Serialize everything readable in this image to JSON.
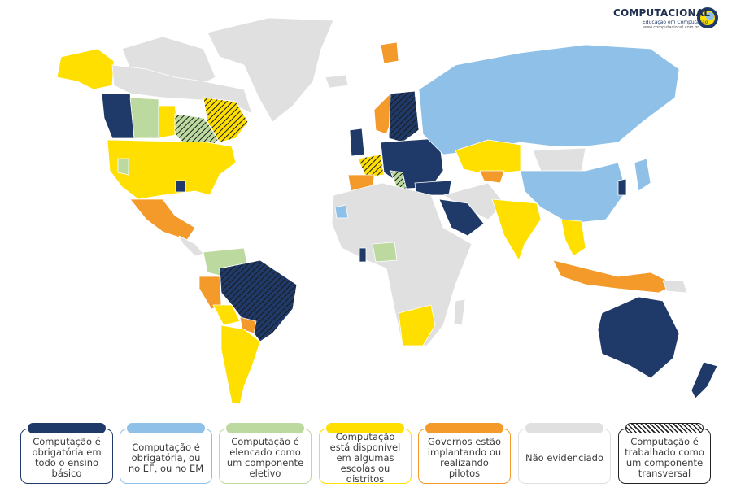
{
  "logo": {
    "title": "COMPUTACIONAL",
    "subtitle": "Educação em Computação",
    "url": "www.computacional.com.br"
  },
  "legend": [
    {
      "label": "Computação é obrigatória em todo o ensino básico",
      "color": "#1f3a68"
    },
    {
      "label": "Computação é obrigatória, ou no EF, ou no EM",
      "color": "#8fc1e8"
    },
    {
      "label": "Computação é elencado como um componente eletivo",
      "color": "#bcd9a0"
    },
    {
      "label": "Computação está disponível em algumas escolas ou distritos",
      "color": "#ffdf00"
    },
    {
      "label": "Governos estão implantando ou realizando pilotos",
      "color": "#f39a2b"
    },
    {
      "label": "Não evidenciado",
      "color": "#e0e0e0"
    },
    {
      "label": "Computação é trabalhado como um componente transversal",
      "color": "#222222"
    }
  ]
}
